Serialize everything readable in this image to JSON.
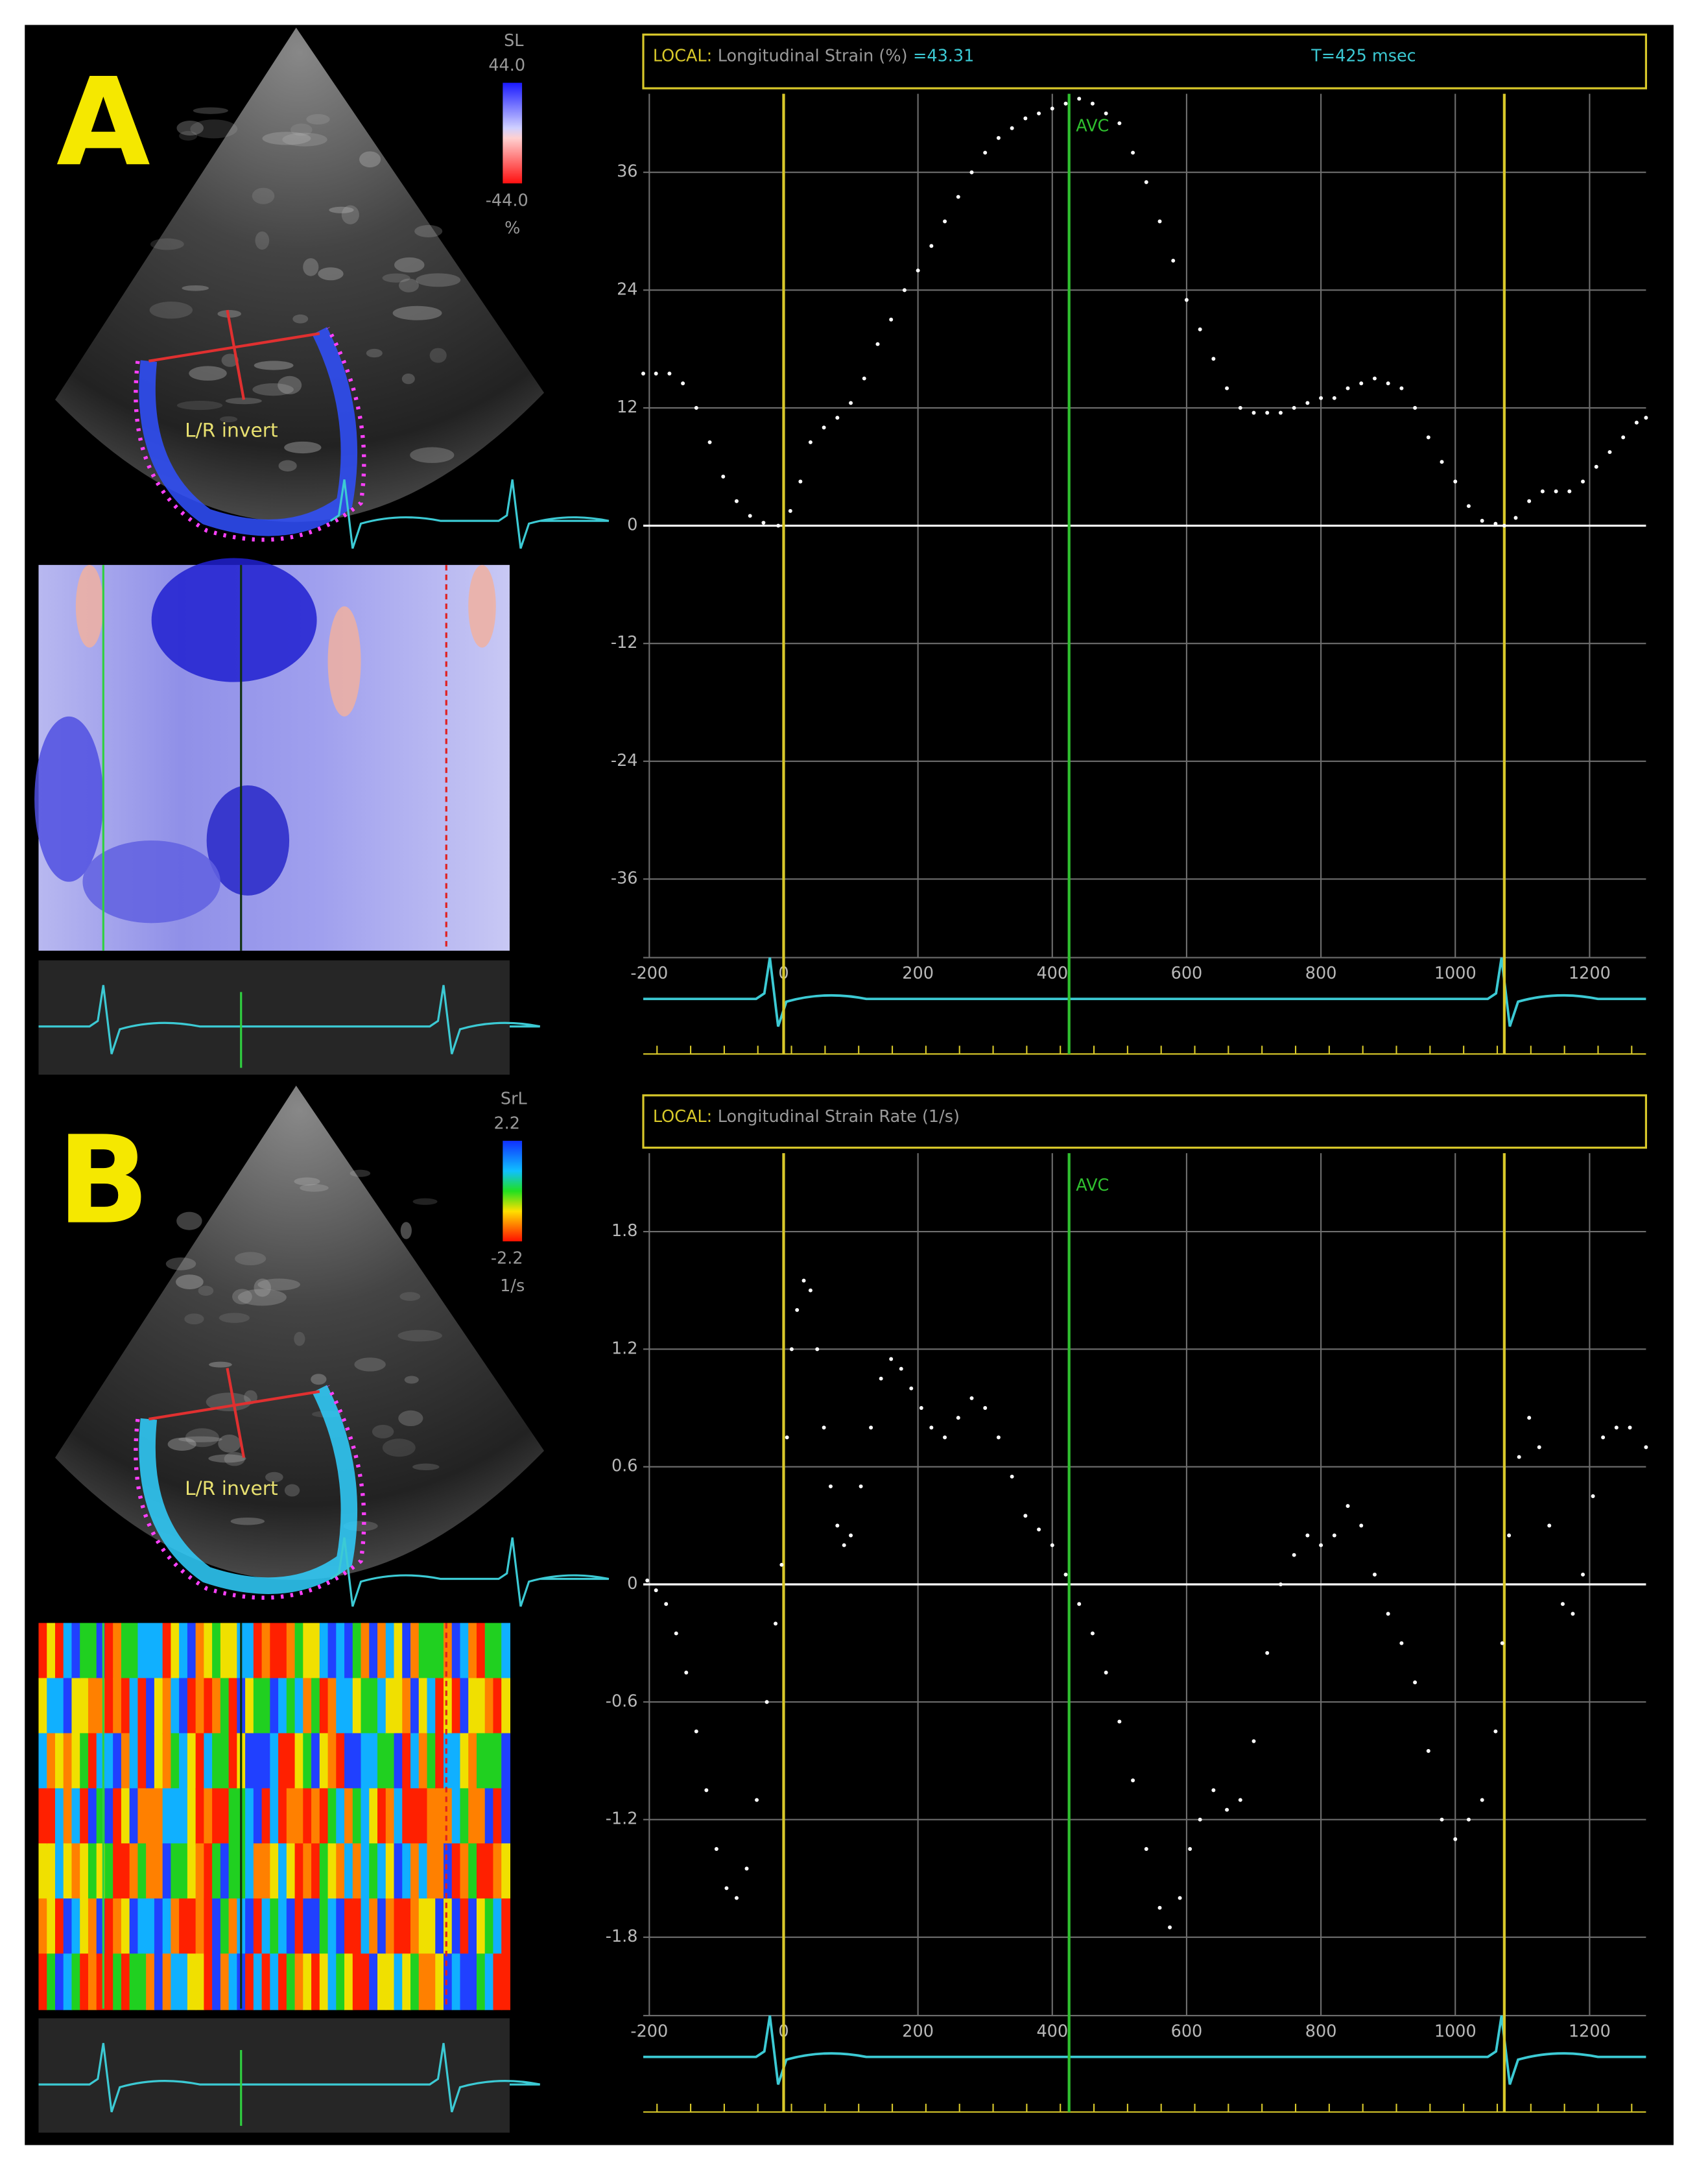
{
  "chart_data": [
    {
      "type": "scatter",
      "header_label": "LOCAL:",
      "title": "Longitudinal Strain (%)",
      "readout": "=43.31",
      "time_readout": "T=425 msec",
      "x": [
        -209,
        -190,
        -170,
        -150,
        -130,
        -110,
        -90,
        -70,
        -50,
        -30,
        -8,
        10,
        25,
        40,
        60,
        80,
        100,
        120,
        140,
        160,
        180,
        200,
        220,
        240,
        260,
        280,
        300,
        320,
        340,
        360,
        380,
        400,
        420,
        440,
        460,
        480,
        500,
        520,
        540,
        560,
        580,
        600,
        620,
        640,
        660,
        680,
        700,
        720,
        740,
        760,
        780,
        800,
        820,
        840,
        860,
        880,
        900,
        920,
        940,
        960,
        980,
        1000,
        1020,
        1040,
        1060,
        1073,
        1090,
        1110,
        1130,
        1150,
        1170,
        1190,
        1210,
        1230,
        1250,
        1270,
        1284
      ],
      "values": [
        15.5,
        15.5,
        15.5,
        14.5,
        12,
        8.5,
        5,
        2.5,
        1,
        0.3,
        0,
        1.5,
        4.5,
        8.5,
        10,
        11,
        12.5,
        15,
        18.5,
        21,
        24,
        26,
        28.5,
        31,
        33.5,
        36,
        38,
        39.5,
        40.5,
        41.5,
        42,
        42.5,
        43,
        43.5,
        43,
        42,
        41,
        38,
        35,
        31,
        27,
        23,
        20,
        17,
        14,
        12,
        11.5,
        11.5,
        11.5,
        12,
        12.5,
        13,
        13,
        14,
        14.5,
        15,
        14.5,
        14,
        12,
        9,
        6.5,
        4.5,
        2,
        0.5,
        0.2,
        0,
        0.8,
        2.5,
        3.5,
        3.5,
        3.5,
        4.5,
        6,
        7.5,
        9,
        10.5,
        11
      ],
      "color": "#ffffff",
      "xlim": [
        -209,
        1284
      ],
      "ylim": [
        -44,
        44
      ],
      "xticks": [
        -200,
        0,
        200,
        400,
        600,
        800,
        1000,
        1200
      ],
      "yticks": [
        -36,
        -24,
        -12,
        0,
        12,
        24,
        36
      ],
      "grid": true,
      "markers": [
        {
          "x": 0,
          "color": "#d8c82a"
        },
        {
          "x": 1073,
          "color": "#d8c82a"
        },
        {
          "x": 425,
          "color": "#2fbf2f",
          "label": "AVC"
        }
      ]
    },
    {
      "type": "scatter",
      "header_label": "LOCAL:",
      "title": "Longitudinal Strain Rate (1/s)",
      "x": [
        -203,
        -190,
        -175,
        -160,
        -145,
        -130,
        -115,
        -100,
        -85,
        -70,
        -55,
        -40,
        -25,
        -12,
        -3,
        5,
        12,
        20,
        30,
        40,
        50,
        60,
        70,
        80,
        90,
        100,
        115,
        130,
        145,
        160,
        175,
        190,
        205,
        220,
        240,
        260,
        280,
        300,
        320,
        340,
        360,
        380,
        400,
        420,
        440,
        460,
        480,
        500,
        520,
        540,
        560,
        575,
        590,
        605,
        620,
        640,
        660,
        680,
        700,
        720,
        740,
        760,
        780,
        800,
        820,
        840,
        860,
        880,
        900,
        920,
        940,
        960,
        980,
        1000,
        1020,
        1040,
        1060,
        1070,
        1080,
        1095,
        1110,
        1125,
        1140,
        1160,
        1175,
        1190,
        1205,
        1220,
        1240,
        1260,
        1284
      ],
      "values": [
        0.02,
        -0.03,
        -0.1,
        -0.25,
        -0.45,
        -0.75,
        -1.05,
        -1.35,
        -1.55,
        -1.6,
        -1.45,
        -1.1,
        -0.6,
        -0.2,
        0.1,
        0.75,
        1.2,
        1.4,
        1.55,
        1.5,
        1.2,
        0.8,
        0.5,
        0.3,
        0.2,
        0.25,
        0.5,
        0.8,
        1.05,
        1.15,
        1.1,
        1.0,
        0.9,
        0.8,
        0.75,
        0.85,
        0.95,
        0.9,
        0.75,
        0.55,
        0.35,
        0.28,
        0.2,
        0.05,
        -0.1,
        -0.25,
        -0.45,
        -0.7,
        -1.0,
        -1.35,
        -1.65,
        -1.75,
        -1.6,
        -1.35,
        -1.2,
        -1.05,
        -1.15,
        -1.1,
        -0.8,
        -0.35,
        0,
        0.15,
        0.25,
        0.2,
        0.25,
        0.4,
        0.3,
        0.05,
        -0.15,
        -0.3,
        -0.5,
        -0.85,
        -1.2,
        -1.3,
        -1.2,
        -1.1,
        -0.75,
        -0.3,
        0.25,
        0.65,
        0.85,
        0.7,
        0.3,
        -0.1,
        -0.15,
        0.05,
        0.45,
        0.75,
        0.8,
        0.8,
        0.7
      ],
      "color": "#ffffff",
      "xlim": [
        -209,
        1284
      ],
      "ylim": [
        -2.2,
        2.2
      ],
      "xticks": [
        -200,
        0,
        200,
        400,
        600,
        800,
        1000,
        1200
      ],
      "yticks": [
        -1.8,
        -1.2,
        -0.6,
        0,
        0.6,
        1.2,
        1.8
      ],
      "grid": true,
      "markers": [
        {
          "x": 0,
          "color": "#d8c82a"
        },
        {
          "x": 1073,
          "color": "#d8c82a"
        },
        {
          "x": 425,
          "color": "#2fbf2f",
          "label": "AVC"
        }
      ]
    }
  ],
  "panels": [
    {
      "letter": "A",
      "scale_name": "SL",
      "scale_max": "44.0",
      "scale_min": "-44.0",
      "scale_unit": "%",
      "label": "L/R invert"
    },
    {
      "letter": "B",
      "scale_name": "SrL",
      "scale_max": "2.2",
      "scale_min": "-2.2",
      "scale_unit": "1/s",
      "label": "L/R invert"
    }
  ]
}
